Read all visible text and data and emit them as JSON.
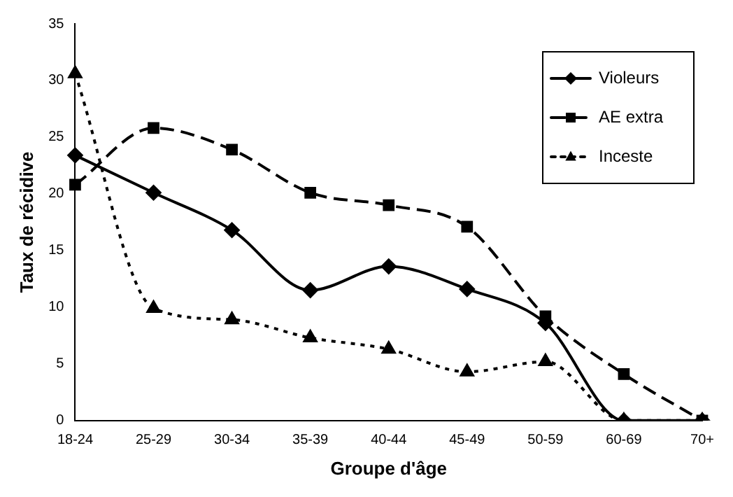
{
  "chart_data": {
    "type": "line",
    "xlabel": "Groupe d'âge",
    "ylabel": "Taux de récidive",
    "categories": [
      "18-24",
      "25-29",
      "30-34",
      "35-39",
      "40-44",
      "45-49",
      "50-59",
      "60-69",
      "70+"
    ],
    "ylim": [
      0,
      35
    ],
    "yticks": [
      0,
      5,
      10,
      15,
      20,
      25,
      30,
      35
    ],
    "grid": false,
    "legend": "top right",
    "series": [
      {
        "name": "Violeurs",
        "color": "#000000",
        "marker": "diamond",
        "line_style": "solid",
        "values": [
          23.4,
          20.1,
          16.8,
          11.5,
          13.6,
          11.6,
          8.6,
          0,
          0
        ]
      },
      {
        "name": "AE extra",
        "color": "#000000",
        "marker": "square",
        "line_style": "dashed",
        "values": [
          20.8,
          25.8,
          23.9,
          20.1,
          19.0,
          17.1,
          9.2,
          4.1,
          0
        ]
      },
      {
        "name": "Inceste",
        "color": "#000000",
        "marker": "triangle",
        "line_style": "dotted",
        "values": [
          30.6,
          9.9,
          8.9,
          7.3,
          6.3,
          4.3,
          5.2,
          0,
          0
        ]
      }
    ]
  }
}
